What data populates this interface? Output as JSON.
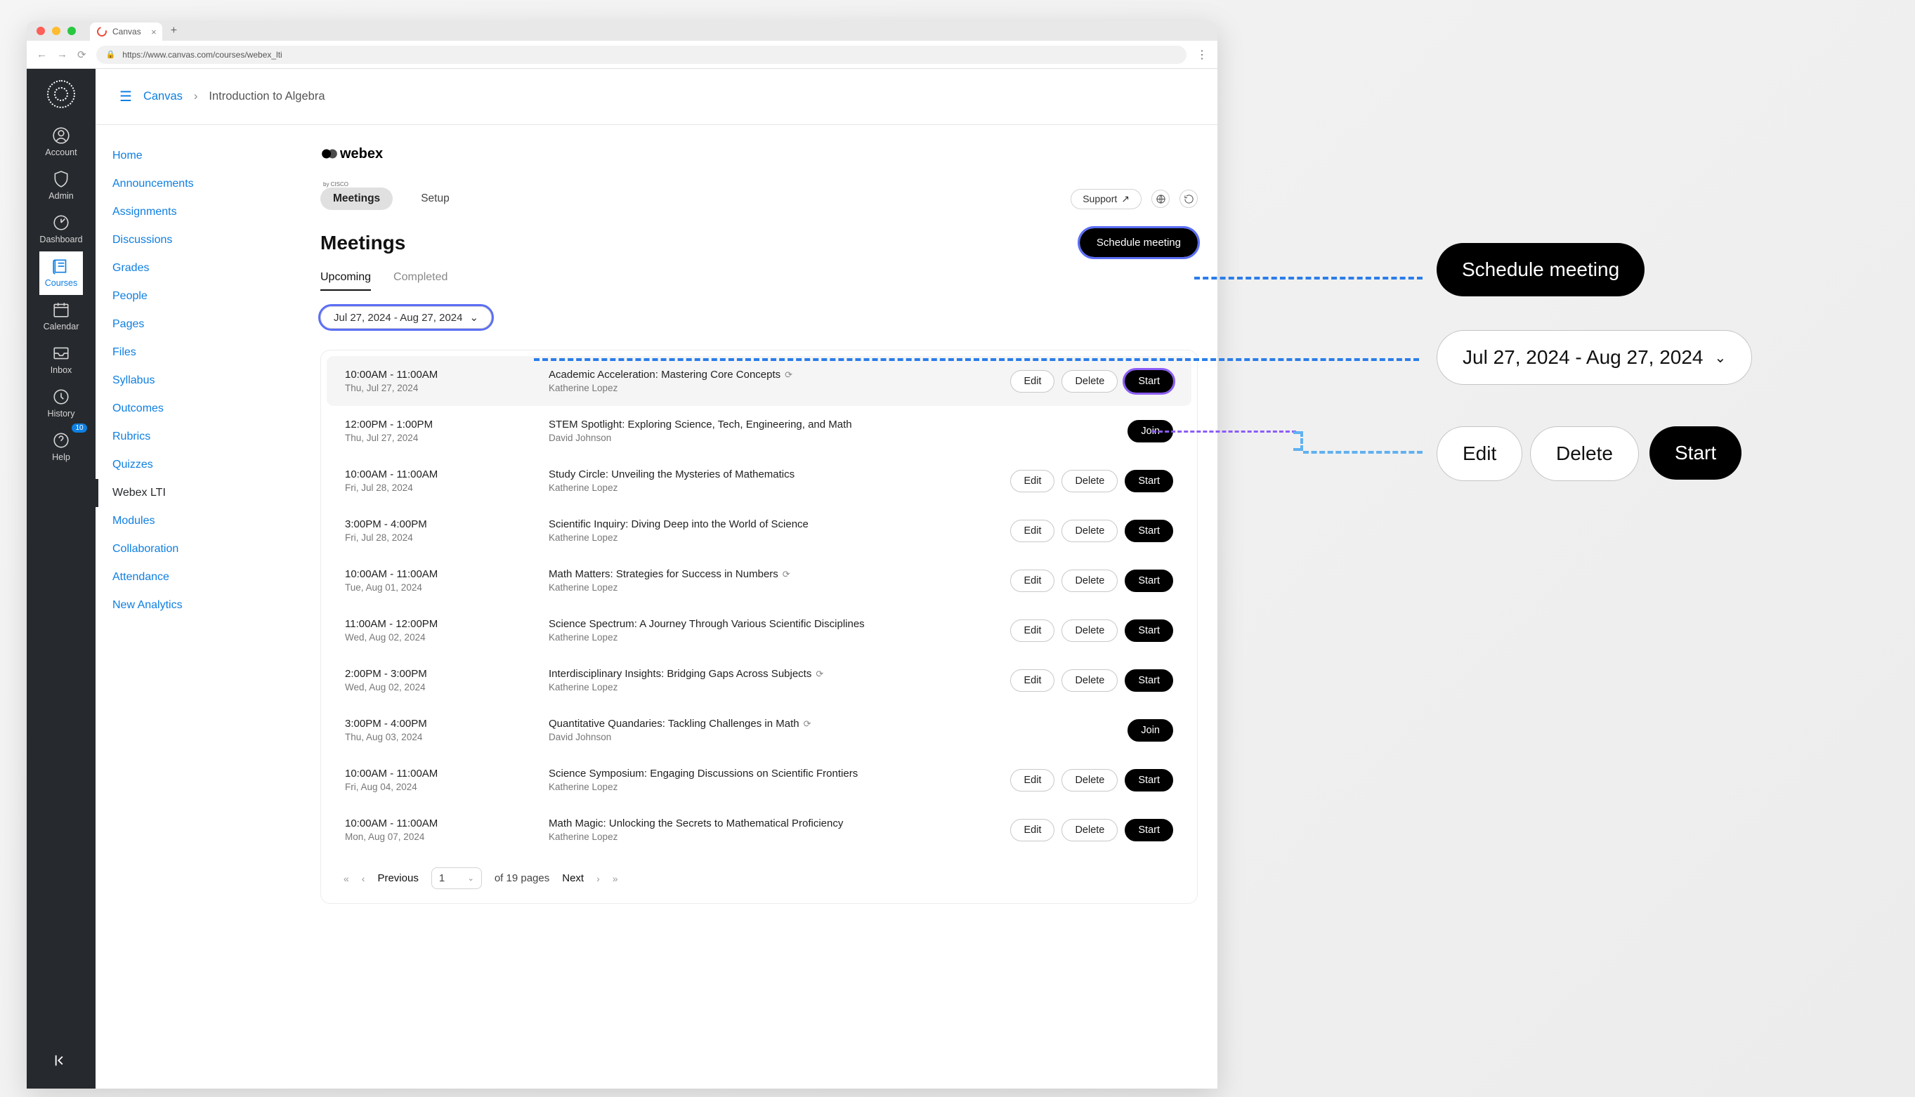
{
  "browser": {
    "tab_title": "Canvas",
    "url": "https://www.canvas.com/courses/webex_lti"
  },
  "global_nav": {
    "items": [
      {
        "label": "Account",
        "active": false
      },
      {
        "label": "Admin",
        "active": false
      },
      {
        "label": "Dashboard",
        "active": false
      },
      {
        "label": "Courses",
        "active": true
      },
      {
        "label": "Calendar",
        "active": false
      },
      {
        "label": "Inbox",
        "active": false
      },
      {
        "label": "History",
        "active": false
      },
      {
        "label": "Help",
        "active": false,
        "badge": "10"
      }
    ]
  },
  "breadcrumb": {
    "link": "Canvas",
    "current": "Introduction to Algebra"
  },
  "course_nav": {
    "items": [
      {
        "label": "Home"
      },
      {
        "label": "Announcements"
      },
      {
        "label": "Assignments"
      },
      {
        "label": "Discussions"
      },
      {
        "label": "Grades"
      },
      {
        "label": "People"
      },
      {
        "label": "Pages"
      },
      {
        "label": "Files"
      },
      {
        "label": "Syllabus"
      },
      {
        "label": "Outcomes"
      },
      {
        "label": "Rubrics"
      },
      {
        "label": "Quizzes"
      },
      {
        "label": "Webex LTI",
        "active": true
      },
      {
        "label": "Modules"
      },
      {
        "label": "Collaboration"
      },
      {
        "label": "Attendance"
      },
      {
        "label": "New Analytics"
      }
    ]
  },
  "webex": {
    "logo_text": "webex",
    "logo_sub": "by CISCO",
    "top_tabs": [
      {
        "label": "Meetings",
        "active": true
      },
      {
        "label": "Setup",
        "active": false
      }
    ],
    "support_label": "Support",
    "page_title": "Meetings",
    "schedule_label": "Schedule meeting",
    "sub_tabs": [
      {
        "label": "Upcoming",
        "active": true
      },
      {
        "label": "Completed",
        "active": false
      }
    ],
    "date_range": "Jul 27, 2024 - Aug 27, 2024",
    "meetings": [
      {
        "time": "10:00AM - 11:00AM",
        "date": "Thu, Jul 27, 2024",
        "title": "Academic Acceleration: Mastering Core Concepts",
        "host": "Katherine Lopez",
        "recurring": true,
        "actions": [
          "Edit",
          "Delete",
          "Start"
        ],
        "highlighted": true
      },
      {
        "time": "12:00PM - 1:00PM",
        "date": "Thu, Jul 27, 2024",
        "title": "STEM Spotlight: Exploring Science, Tech, Engineering, and Math",
        "host": "David Johnson",
        "recurring": false,
        "actions": [
          "Join"
        ]
      },
      {
        "time": "10:00AM - 11:00AM",
        "date": "Fri, Jul 28, 2024",
        "title": "Study Circle: Unveiling the Mysteries of Mathematics",
        "host": "Katherine Lopez",
        "recurring": false,
        "actions": [
          "Edit",
          "Delete",
          "Start"
        ]
      },
      {
        "time": "3:00PM - 4:00PM",
        "date": "Fri, Jul 28, 2024",
        "title": "Scientific Inquiry: Diving Deep into the World of Science",
        "host": "Katherine Lopez",
        "recurring": false,
        "actions": [
          "Edit",
          "Delete",
          "Start"
        ]
      },
      {
        "time": "10:00AM - 11:00AM",
        "date": "Tue, Aug 01, 2024",
        "title": "Math Matters: Strategies for Success in Numbers",
        "host": "Katherine Lopez",
        "recurring": true,
        "actions": [
          "Edit",
          "Delete",
          "Start"
        ]
      },
      {
        "time": "11:00AM - 12:00PM",
        "date": "Wed, Aug 02, 2024",
        "title": "Science Spectrum: A Journey Through Various Scientific Disciplines",
        "host": "Katherine Lopez",
        "recurring": false,
        "actions": [
          "Edit",
          "Delete",
          "Start"
        ]
      },
      {
        "time": "2:00PM - 3:00PM",
        "date": "Wed, Aug 02, 2024",
        "title": "Interdisciplinary Insights: Bridging Gaps Across Subjects",
        "host": "Katherine Lopez",
        "recurring": true,
        "actions": [
          "Edit",
          "Delete",
          "Start"
        ]
      },
      {
        "time": "3:00PM - 4:00PM",
        "date": "Thu, Aug 03, 2024",
        "title": "Quantitative Quandaries: Tackling Challenges in Math",
        "host": "David Johnson",
        "recurring": true,
        "actions": [
          "Join"
        ]
      },
      {
        "time": "10:00AM - 11:00AM",
        "date": "Fri, Aug 04, 2024",
        "title": "Science Symposium: Engaging Discussions on Scientific Frontiers",
        "host": "Katherine Lopez",
        "recurring": false,
        "actions": [
          "Edit",
          "Delete",
          "Start"
        ]
      },
      {
        "time": "10:00AM - 11:00AM",
        "date": "Mon, Aug 07, 2024",
        "title": "Math Magic: Unlocking the Secrets to Mathematical Proficiency",
        "host": "Katherine Lopez",
        "recurring": false,
        "actions": [
          "Edit",
          "Delete",
          "Start"
        ]
      }
    ],
    "pagination": {
      "prev": "Previous",
      "next": "Next",
      "page": "1",
      "of_text": "of 19 pages"
    }
  },
  "callouts": {
    "schedule": "Schedule meeting",
    "date_range": "Jul 27, 2024 - Aug 27, 2024",
    "edit": "Edit",
    "delete": "Delete",
    "start": "Start"
  },
  "colors": {
    "accent_link": "#0e7fe1",
    "dark_bg": "#26292d",
    "callout_blue": "#2b7de9",
    "callout_purple": "#8b5cf6"
  }
}
